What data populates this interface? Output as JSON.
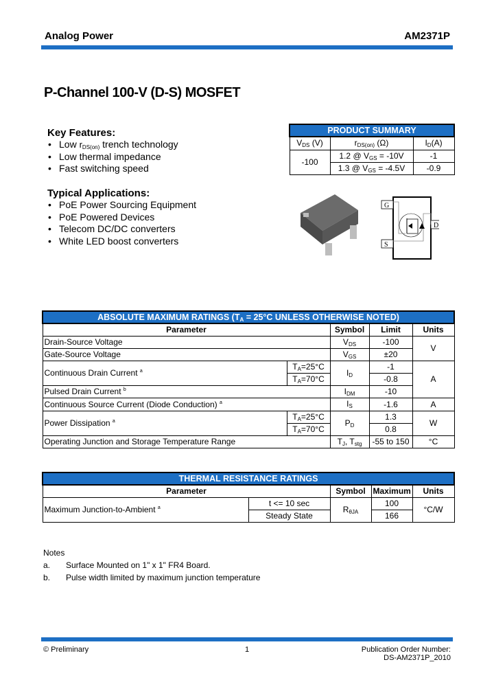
{
  "header": {
    "company": "Analog Power",
    "part_number": "AM2371P"
  },
  "title": "P-Channel 100-V (D-S) MOSFET",
  "key_features": {
    "heading": "Key Features:",
    "items": [
      {
        "pre": "Low ",
        "sym": "r",
        "sub": "DS(on)",
        "post": " trench technology"
      },
      {
        "pre": "Low thermal impedance"
      },
      {
        "pre": "Fast switching speed"
      }
    ]
  },
  "typical_applications": {
    "heading": "Typical Applications:",
    "items": [
      "PoE Power Sourcing Equipment",
      "PoE Powered Devices",
      "Telecom DC/DC converters",
      "White LED boost converters"
    ]
  },
  "product_summary": {
    "title": "PRODUCT SUMMARY",
    "headers": {
      "vds": "V",
      "vds_sub": "DS",
      "vds_unit": " (V)",
      "rds": "r",
      "rds_sub": "DS(on)",
      "rds_unit": " (Ω)",
      "id": "I",
      "id_sub": "D",
      "id_unit": "(A)"
    },
    "vds_value": "-100",
    "rows": [
      {
        "pre": "1.2 @ V",
        "sub": "GS",
        "post": " = -10V",
        "id": "-1"
      },
      {
        "pre": "1.3 @ V",
        "sub": "GS",
        "post": " = -4.5V",
        "id": "-0.9"
      }
    ]
  },
  "schematic": {
    "gate": "G",
    "drain": "D",
    "source": "S"
  },
  "abs_max": {
    "title_pre": "ABSOLUTE MAXIMUM RATINGS (T",
    "title_sub": "A",
    "title_post": " = 25°C UNLESS OTHERWISE NOTED)",
    "headers": [
      "Parameter",
      "Symbol",
      "Limit",
      "Units"
    ],
    "rows": {
      "vds": {
        "param": "Drain-Source Voltage",
        "sym": "V",
        "sym_sub": "DS",
        "limit": "-100"
      },
      "vgs": {
        "param": "Gate-Source Voltage",
        "sym": "V",
        "sym_sub": "GS",
        "limit": "±20",
        "unit": "V"
      },
      "id": {
        "param": "Continuous Drain Current",
        "note": "a",
        "cond1": "=25°C",
        "cond2": "=70°C",
        "sym": "I",
        "sym_sub": "D",
        "limit1": "-1",
        "limit2": "-0.8"
      },
      "idm": {
        "param": "Pulsed Drain Current",
        "note": "b",
        "sym": "I",
        "sym_sub": "DM",
        "limit": "-10",
        "unit": "A"
      },
      "is": {
        "param": "Continuous Source Current (Diode Conduction)",
        "note": "a",
        "sym": "I",
        "sym_sub": "S",
        "limit": "-1.6",
        "unit": "A"
      },
      "pd": {
        "param": "Power Dissipation",
        "note": "a",
        "cond1": "=25°C",
        "cond2": "=70°C",
        "sym": "P",
        "sym_sub": "D",
        "limit1": "1.3",
        "limit2": "0.8",
        "unit": "W"
      },
      "tj": {
        "param": "Operating Junction and Storage Temperature Range",
        "sym": "T",
        "sym_sub": "J",
        "sym2": ", T",
        "sym2_sub": "stg",
        "limit": "-55 to 150",
        "unit": "°C"
      }
    },
    "ta": "T",
    "ta_sub": "A"
  },
  "thermal": {
    "title": "THERMAL RESISTANCE RATINGS",
    "headers": [
      "Parameter",
      "Symbol",
      "Maximum",
      "Units"
    ],
    "param": "Maximum Junction-to-Ambient",
    "note": "a",
    "cond1": "t <= 10 sec",
    "cond2": "Steady State",
    "sym": "R",
    "sym_sub": "θJA",
    "max1": "100",
    "max2": "166",
    "unit": "°C/W"
  },
  "notes": {
    "heading": "Notes",
    "items": [
      {
        "label": "a.",
        "text": "Surface Mounted on 1\" x 1\" FR4 Board."
      },
      {
        "label": "b.",
        "text": "Pulse width limited by maximum junction temperature"
      }
    ]
  },
  "footer": {
    "left": "© Preliminary",
    "page": "1",
    "right1": "Publication Order Number:",
    "right2": "DS-AM2371P_2010"
  },
  "colors": {
    "accent": "#1d6fc4"
  }
}
